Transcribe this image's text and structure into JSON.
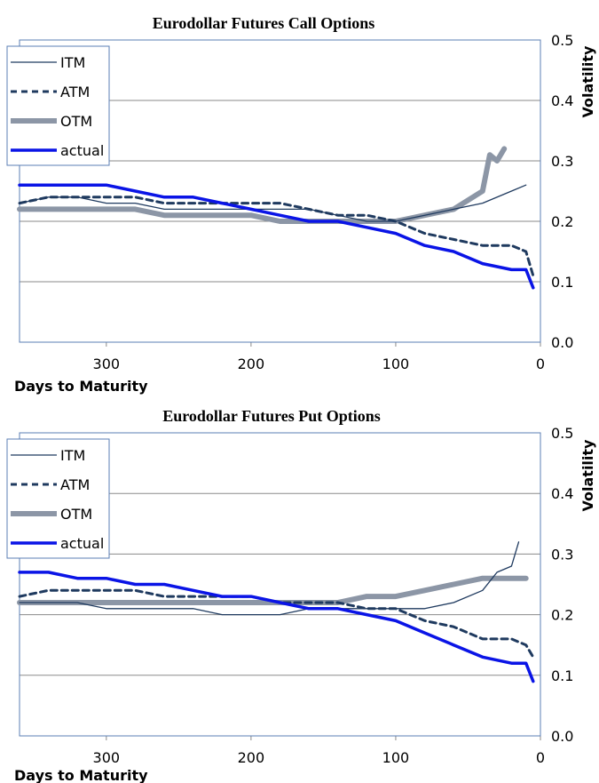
{
  "chart_data": [
    {
      "type": "line",
      "title": "Eurodollar Futures Call Options",
      "xlabel": "Days to Maturity",
      "ylabel": "Volatility",
      "xlim": [
        360,
        0
      ],
      "ylim": [
        0.0,
        0.5
      ],
      "xticks": [
        300,
        200,
        100,
        0
      ],
      "yticks": [
        0.0,
        0.1,
        0.2,
        0.3,
        0.4,
        0.5
      ],
      "ytick_labels": [
        "0.0",
        "0.1",
        "0.2",
        "0.3",
        "0.4",
        "0.5"
      ],
      "grid": "horizontal",
      "legend": "top-left",
      "series": [
        {
          "name": "ITM",
          "color": "#1f3a5f",
          "style": "thin",
          "x": [
            360,
            340,
            320,
            300,
            280,
            260,
            240,
            220,
            200,
            180,
            160,
            140,
            120,
            100,
            80,
            60,
            40,
            20,
            10
          ],
          "y": [
            0.23,
            0.24,
            0.24,
            0.23,
            0.23,
            0.22,
            0.22,
            0.22,
            0.22,
            0.22,
            0.22,
            0.21,
            0.2,
            0.2,
            0.21,
            0.22,
            0.23,
            0.25,
            0.26
          ]
        },
        {
          "name": "ATM",
          "color": "#1f3a5f",
          "style": "dashed",
          "x": [
            360,
            340,
            320,
            300,
            280,
            260,
            240,
            220,
            200,
            180,
            160,
            140,
            120,
            100,
            80,
            60,
            40,
            20,
            10,
            5
          ],
          "y": [
            0.23,
            0.24,
            0.24,
            0.24,
            0.24,
            0.23,
            0.23,
            0.23,
            0.23,
            0.23,
            0.22,
            0.21,
            0.21,
            0.2,
            0.18,
            0.17,
            0.16,
            0.16,
            0.15,
            0.11
          ]
        },
        {
          "name": "OTM",
          "color": "#8c96a6",
          "style": "thick",
          "x": [
            360,
            340,
            320,
            300,
            280,
            260,
            240,
            220,
            200,
            180,
            160,
            140,
            120,
            100,
            80,
            60,
            40,
            35,
            30,
            25
          ],
          "y": [
            0.22,
            0.22,
            0.22,
            0.22,
            0.22,
            0.21,
            0.21,
            0.21,
            0.21,
            0.2,
            0.2,
            0.2,
            0.2,
            0.2,
            0.21,
            0.22,
            0.25,
            0.31,
            0.3,
            0.32
          ]
        },
        {
          "name": "actual",
          "color": "#0a14e6",
          "style": "solid",
          "x": [
            360,
            340,
            320,
            300,
            280,
            260,
            240,
            220,
            200,
            180,
            160,
            140,
            120,
            100,
            80,
            60,
            40,
            20,
            10,
            5
          ],
          "y": [
            0.26,
            0.26,
            0.26,
            0.26,
            0.25,
            0.24,
            0.24,
            0.23,
            0.22,
            0.21,
            0.2,
            0.2,
            0.19,
            0.18,
            0.16,
            0.15,
            0.13,
            0.12,
            0.12,
            0.09
          ]
        }
      ]
    },
    {
      "type": "line",
      "title": "Eurodollar Futures Put Options",
      "xlabel": "Days to Maturity",
      "ylabel": "Volatility",
      "xlim": [
        360,
        0
      ],
      "ylim": [
        0.0,
        0.5
      ],
      "xticks": [
        300,
        200,
        100,
        0
      ],
      "yticks": [
        0.0,
        0.1,
        0.2,
        0.3,
        0.4,
        0.5
      ],
      "ytick_labels": [
        "0.0",
        "0.1",
        "0.2",
        "0.3",
        "0.4",
        "0.5"
      ],
      "grid": "horizontal",
      "legend": "top-left",
      "series": [
        {
          "name": "ITM",
          "color": "#1f3a5f",
          "style": "thin",
          "x": [
            360,
            340,
            320,
            300,
            280,
            260,
            240,
            220,
            200,
            180,
            160,
            140,
            120,
            100,
            80,
            60,
            40,
            30,
            20,
            15
          ],
          "y": [
            0.22,
            0.22,
            0.22,
            0.21,
            0.21,
            0.21,
            0.21,
            0.2,
            0.2,
            0.2,
            0.21,
            0.21,
            0.21,
            0.21,
            0.21,
            0.22,
            0.24,
            0.27,
            0.28,
            0.32
          ]
        },
        {
          "name": "ATM",
          "color": "#1f3a5f",
          "style": "dashed",
          "x": [
            360,
            340,
            320,
            300,
            280,
            260,
            240,
            220,
            200,
            180,
            160,
            140,
            120,
            100,
            80,
            60,
            40,
            20,
            10,
            5
          ],
          "y": [
            0.23,
            0.24,
            0.24,
            0.24,
            0.24,
            0.23,
            0.23,
            0.23,
            0.23,
            0.22,
            0.22,
            0.22,
            0.21,
            0.21,
            0.19,
            0.18,
            0.16,
            0.16,
            0.15,
            0.13
          ]
        },
        {
          "name": "OTM",
          "color": "#8c96a6",
          "style": "thick",
          "x": [
            360,
            340,
            320,
            300,
            280,
            260,
            240,
            220,
            200,
            180,
            160,
            140,
            120,
            100,
            80,
            60,
            40,
            20,
            10
          ],
          "y": [
            0.22,
            0.22,
            0.22,
            0.22,
            0.22,
            0.22,
            0.22,
            0.22,
            0.22,
            0.22,
            0.22,
            0.22,
            0.23,
            0.23,
            0.24,
            0.25,
            0.26,
            0.26,
            0.26
          ]
        },
        {
          "name": "actual",
          "color": "#0a14e6",
          "style": "solid",
          "x": [
            360,
            340,
            320,
            300,
            280,
            260,
            240,
            220,
            200,
            180,
            160,
            140,
            120,
            100,
            80,
            60,
            40,
            20,
            10,
            5
          ],
          "y": [
            0.27,
            0.27,
            0.26,
            0.26,
            0.25,
            0.25,
            0.24,
            0.23,
            0.23,
            0.22,
            0.21,
            0.21,
            0.2,
            0.19,
            0.17,
            0.15,
            0.13,
            0.12,
            0.12,
            0.09
          ]
        }
      ]
    }
  ]
}
